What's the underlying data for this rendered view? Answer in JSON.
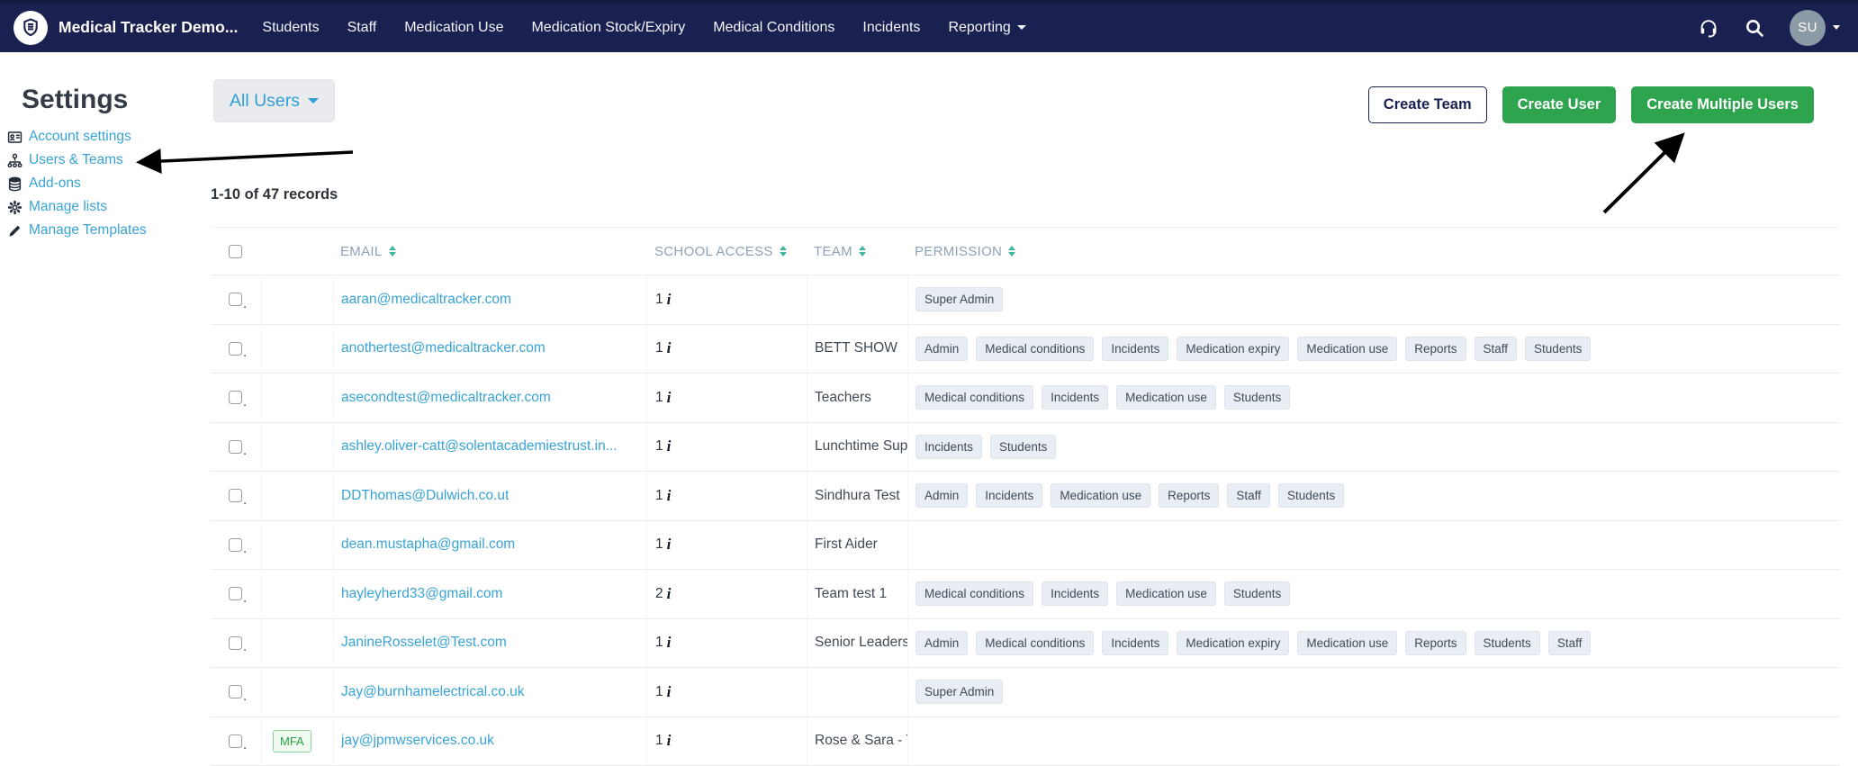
{
  "navbar": {
    "brand": "Medical Tracker Demo...",
    "items": [
      "Students",
      "Staff",
      "Medication Use",
      "Medication Stock/Expiry",
      "Medical Conditions",
      "Incidents"
    ],
    "reporting_label": "Reporting",
    "avatar_initials": "SU"
  },
  "sidebar": {
    "title": "Settings",
    "items": [
      {
        "icon": "account-settings-icon",
        "label": "Account settings"
      },
      {
        "icon": "users-teams-icon",
        "label": "Users & Teams"
      },
      {
        "icon": "add-ons-icon",
        "label": "Add-ons"
      },
      {
        "icon": "manage-lists-icon",
        "label": "Manage lists"
      },
      {
        "icon": "manage-templates-icon",
        "label": "Manage Templates"
      }
    ]
  },
  "toolbar": {
    "filter_label": "All Users",
    "create_team_label": "Create Team",
    "create_user_label": "Create User",
    "create_multiple_label": "Create Multiple Users"
  },
  "table": {
    "records_summary": "1-10 of 47 records",
    "columns": [
      "EMAIL",
      "SCHOOL ACCESS",
      "TEAM",
      "PERMISSION"
    ],
    "checkbox_dot": ".",
    "info_icon": "i",
    "mfa_label": "MFA",
    "rows": [
      {
        "email": "aaran@medicaltracker.com",
        "school_access": "1",
        "team": "",
        "mfa": false,
        "permissions": [
          "Super Admin"
        ]
      },
      {
        "email": "anothertest@medicaltracker.com",
        "school_access": "1",
        "team": "BETT SHOW",
        "mfa": false,
        "permissions": [
          "Admin",
          "Medical conditions",
          "Incidents",
          "Medication expiry",
          "Medication use",
          "Reports",
          "Staff",
          "Students"
        ]
      },
      {
        "email": "asecondtest@medicaltracker.com",
        "school_access": "1",
        "team": "Teachers",
        "mfa": false,
        "permissions": [
          "Medical conditions",
          "Incidents",
          "Medication use",
          "Students"
        ]
      },
      {
        "email": "ashley.oliver-catt@solentacademiestrust.in...",
        "school_access": "1",
        "team": "Lunchtime Sup",
        "mfa": false,
        "permissions": [
          "Incidents",
          "Students"
        ]
      },
      {
        "email": "DDThomas@Dulwich.co.ut",
        "school_access": "1",
        "team": "Sindhura Test",
        "mfa": false,
        "permissions": [
          "Admin",
          "Incidents",
          "Medication use",
          "Reports",
          "Staff",
          "Students"
        ]
      },
      {
        "email": "dean.mustapha@gmail.com",
        "school_access": "1",
        "team": "First Aider",
        "mfa": false,
        "permissions": []
      },
      {
        "email": "hayleyherd33@gmail.com",
        "school_access": "2",
        "team": "Team test 1",
        "mfa": false,
        "permissions": [
          "Medical conditions",
          "Incidents",
          "Medication use",
          "Students"
        ]
      },
      {
        "email": "JanineRosselet@Test.com",
        "school_access": "1",
        "team": "Senior Leaders",
        "mfa": false,
        "permissions": [
          "Admin",
          "Medical conditions",
          "Incidents",
          "Medication expiry",
          "Medication use",
          "Reports",
          "Students",
          "Staff"
        ]
      },
      {
        "email": "Jay@burnhamelectrical.co.uk",
        "school_access": "1",
        "team": "",
        "mfa": false,
        "permissions": [
          "Super Admin"
        ]
      },
      {
        "email": "jay@jpmwservices.co.uk",
        "school_access": "1",
        "team": "Rose & Sara - T",
        "mfa": true,
        "permissions": []
      }
    ]
  },
  "colors": {
    "navbar_bg": "#1a2151",
    "link_blue": "#38a3d6",
    "button_green": "#2ea44e",
    "sort_teal": "#3eb79f",
    "badge_bg": "#e9eef4",
    "mfa_green": "#2f9e44",
    "avatar_bg": "#8b9aa5"
  }
}
